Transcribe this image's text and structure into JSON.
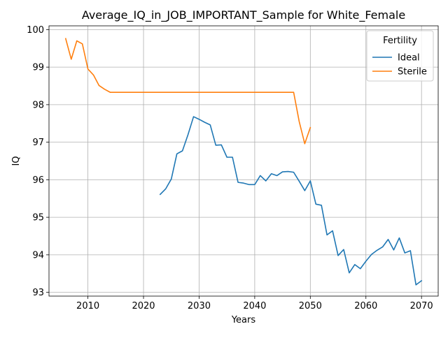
{
  "chart_data": {
    "type": "line",
    "title": "Average_IQ_in_JOB_IMPORTANT_Sample for White_Female",
    "xlabel": "Years",
    "ylabel": "IQ",
    "xlim": [
      2003,
      2073
    ],
    "ylim": [
      92.9,
      100.1
    ],
    "xticks": [
      2010,
      2020,
      2030,
      2040,
      2050,
      2060,
      2070
    ],
    "yticks": [
      93,
      94,
      95,
      96,
      97,
      98,
      99,
      100
    ],
    "grid": true,
    "legend": {
      "title": "Fertility",
      "placement": "top-right"
    },
    "series": [
      {
        "name": "Ideal",
        "color": "#1f77b4",
        "x": [
          2023,
          2024,
          2025,
          2026,
          2027,
          2028,
          2029,
          2030,
          2031,
          2032,
          2033,
          2034,
          2035,
          2036,
          2037,
          2038,
          2039,
          2040,
          2041,
          2042,
          2043,
          2044,
          2045,
          2046,
          2047,
          2048,
          2049,
          2050,
          2051,
          2052,
          2053,
          2054,
          2055,
          2056,
          2057,
          2058,
          2059,
          2060,
          2061,
          2062,
          2063,
          2064,
          2065,
          2066,
          2067,
          2068,
          2069,
          2070
        ],
        "values": [
          95.61,
          95.76,
          96.02,
          96.69,
          96.77,
          97.2,
          97.68,
          97.61,
          97.53,
          97.46,
          96.92,
          96.93,
          96.6,
          96.6,
          95.93,
          95.91,
          95.87,
          95.87,
          96.11,
          95.97,
          96.16,
          96.11,
          96.21,
          96.22,
          96.2,
          95.96,
          95.71,
          95.97,
          95.35,
          95.32,
          94.53,
          94.64,
          93.98,
          94.14,
          93.52,
          93.74,
          93.63,
          93.83,
          94.01,
          94.12,
          94.21,
          94.41,
          94.13,
          94.45,
          94.05,
          94.11,
          93.2,
          93.31
        ]
      },
      {
        "name": "Sterile",
        "color": "#ff7f0e",
        "x": [
          2006,
          2007,
          2008,
          2009,
          2010,
          2011,
          2012,
          2013,
          2014,
          2015,
          2016,
          2017,
          2018,
          2019,
          2020,
          2021,
          2022,
          2023,
          2024,
          2025,
          2026,
          2027,
          2028,
          2029,
          2030,
          2031,
          2032,
          2033,
          2034,
          2035,
          2036,
          2037,
          2038,
          2039,
          2040,
          2041,
          2042,
          2043,
          2044,
          2045,
          2046,
          2047,
          2048,
          2049,
          2050
        ],
        "values": [
          99.76,
          99.21,
          99.7,
          99.62,
          98.95,
          98.79,
          98.51,
          98.41,
          98.33,
          98.33,
          98.33,
          98.33,
          98.33,
          98.33,
          98.33,
          98.33,
          98.33,
          98.33,
          98.33,
          98.33,
          98.33,
          98.33,
          98.33,
          98.33,
          98.33,
          98.33,
          98.33,
          98.33,
          98.33,
          98.33,
          98.33,
          98.33,
          98.33,
          98.33,
          98.33,
          98.33,
          98.33,
          98.33,
          98.33,
          98.33,
          98.33,
          98.33,
          97.55,
          96.96,
          97.39
        ]
      }
    ]
  }
}
